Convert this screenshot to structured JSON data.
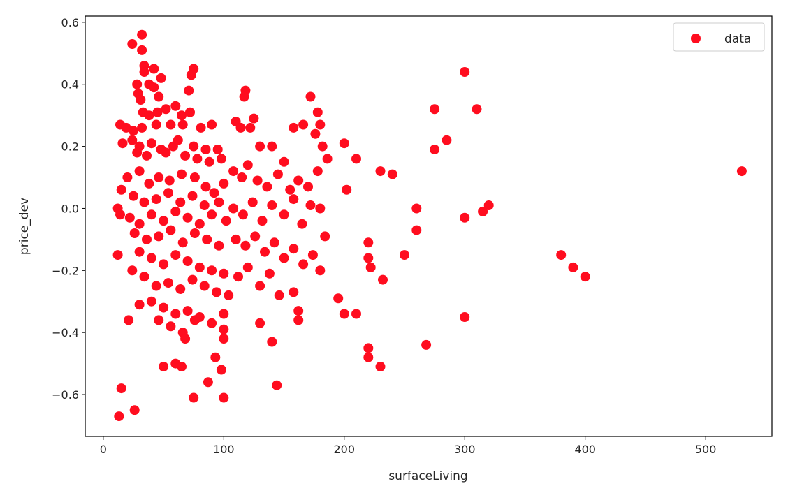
{
  "chart_data": {
    "type": "scatter",
    "title": "",
    "xlabel": "surfaceLiving",
    "ylabel": "price_dev",
    "xlim": [
      -15,
      555
    ],
    "ylim": [
      -0.735,
      0.62
    ],
    "xticks": [
      0,
      100,
      200,
      300,
      400,
      500
    ],
    "xtick_labels": [
      "0",
      "100",
      "200",
      "300",
      "400",
      "500"
    ],
    "yticks": [
      -0.6,
      -0.4,
      -0.2,
      0.0,
      0.2,
      0.4,
      0.6
    ],
    "ytick_labels": [
      "−0.6",
      "−0.4",
      "−0.2",
      "0.0",
      "0.2",
      "0.4",
      "0.6"
    ],
    "grid": false,
    "legend_position": "top-right",
    "series": [
      {
        "name": "data",
        "color": "#ff0d1f",
        "points": [
          [
            32,
            0.56
          ],
          [
            24,
            0.53
          ],
          [
            32,
            0.51
          ],
          [
            42,
            0.45
          ],
          [
            34,
            0.46
          ],
          [
            34,
            0.44
          ],
          [
            48,
            0.42
          ],
          [
            28,
            0.4
          ],
          [
            38,
            0.4
          ],
          [
            42,
            0.39
          ],
          [
            29,
            0.37
          ],
          [
            46,
            0.36
          ],
          [
            31,
            0.35
          ],
          [
            75,
            0.45
          ],
          [
            73,
            0.43
          ],
          [
            71,
            0.38
          ],
          [
            60,
            0.33
          ],
          [
            52,
            0.32
          ],
          [
            65,
            0.3
          ],
          [
            72,
            0.31
          ],
          [
            45,
            0.31
          ],
          [
            33,
            0.31
          ],
          [
            38,
            0.3
          ],
          [
            14,
            0.27
          ],
          [
            19,
            0.26
          ],
          [
            25,
            0.25
          ],
          [
            32,
            0.26
          ],
          [
            44,
            0.27
          ],
          [
            56,
            0.27
          ],
          [
            66,
            0.27
          ],
          [
            81,
            0.26
          ],
          [
            90,
            0.27
          ],
          [
            24,
            0.22
          ],
          [
            30,
            0.2
          ],
          [
            40,
            0.21
          ],
          [
            48,
            0.19
          ],
          [
            58,
            0.2
          ],
          [
            62,
            0.22
          ],
          [
            75,
            0.2
          ],
          [
            85,
            0.19
          ],
          [
            95,
            0.19
          ],
          [
            16,
            0.21
          ],
          [
            28,
            0.18
          ],
          [
            36,
            0.17
          ],
          [
            52,
            0.18
          ],
          [
            68,
            0.17
          ],
          [
            78,
            0.16
          ],
          [
            88,
            0.15
          ],
          [
            98,
            0.16
          ],
          [
            20,
            0.1
          ],
          [
            30,
            0.12
          ],
          [
            38,
            0.08
          ],
          [
            46,
            0.1
          ],
          [
            55,
            0.09
          ],
          [
            65,
            0.11
          ],
          [
            76,
            0.1
          ],
          [
            85,
            0.07
          ],
          [
            92,
            0.05
          ],
          [
            100,
            0.08
          ],
          [
            15,
            0.06
          ],
          [
            25,
            0.04
          ],
          [
            34,
            0.02
          ],
          [
            44,
            0.03
          ],
          [
            54,
            0.05
          ],
          [
            64,
            0.02
          ],
          [
            74,
            0.04
          ],
          [
            84,
            0.01
          ],
          [
            96,
            0.02
          ],
          [
            12,
            0.0
          ],
          [
            14,
            -0.02
          ],
          [
            22,
            -0.03
          ],
          [
            30,
            -0.05
          ],
          [
            40,
            -0.02
          ],
          [
            50,
            -0.04
          ],
          [
            60,
            -0.01
          ],
          [
            70,
            -0.03
          ],
          [
            80,
            -0.05
          ],
          [
            90,
            -0.02
          ],
          [
            102,
            -0.04
          ],
          [
            26,
            -0.08
          ],
          [
            36,
            -0.1
          ],
          [
            46,
            -0.09
          ],
          [
            56,
            -0.07
          ],
          [
            66,
            -0.11
          ],
          [
            76,
            -0.08
          ],
          [
            86,
            -0.1
          ],
          [
            96,
            -0.12
          ],
          [
            12,
            -0.15
          ],
          [
            30,
            -0.14
          ],
          [
            40,
            -0.16
          ],
          [
            50,
            -0.18
          ],
          [
            60,
            -0.15
          ],
          [
            70,
            -0.17
          ],
          [
            80,
            -0.19
          ],
          [
            90,
            -0.2
          ],
          [
            100,
            -0.21
          ],
          [
            24,
            -0.2
          ],
          [
            34,
            -0.22
          ],
          [
            44,
            -0.25
          ],
          [
            54,
            -0.24
          ],
          [
            64,
            -0.26
          ],
          [
            74,
            -0.23
          ],
          [
            84,
            -0.25
          ],
          [
            94,
            -0.27
          ],
          [
            104,
            -0.28
          ],
          [
            30,
            -0.31
          ],
          [
            40,
            -0.3
          ],
          [
            50,
            -0.32
          ],
          [
            60,
            -0.34
          ],
          [
            70,
            -0.33
          ],
          [
            80,
            -0.35
          ],
          [
            90,
            -0.37
          ],
          [
            100,
            -0.34
          ],
          [
            21,
            -0.36
          ],
          [
            46,
            -0.36
          ],
          [
            56,
            -0.38
          ],
          [
            66,
            -0.4
          ],
          [
            68,
            -0.42
          ],
          [
            76,
            -0.36
          ],
          [
            100,
            -0.39
          ],
          [
            100,
            -0.42
          ],
          [
            50,
            -0.51
          ],
          [
            60,
            -0.5
          ],
          [
            65,
            -0.51
          ],
          [
            87,
            -0.56
          ],
          [
            93,
            -0.48
          ],
          [
            98,
            -0.52
          ],
          [
            144,
            -0.57
          ],
          [
            15,
            -0.58
          ],
          [
            26,
            -0.65
          ],
          [
            13,
            -0.67
          ],
          [
            75,
            -0.61
          ],
          [
            100,
            -0.61
          ],
          [
            110,
            0.28
          ],
          [
            114,
            0.26
          ],
          [
            118,
            0.38
          ],
          [
            117,
            0.36
          ],
          [
            122,
            0.26
          ],
          [
            125,
            0.29
          ],
          [
            130,
            0.2
          ],
          [
            140,
            0.2
          ],
          [
            150,
            0.15
          ],
          [
            158,
            0.26
          ],
          [
            166,
            0.27
          ],
          [
            172,
            0.36
          ],
          [
            178,
            0.31
          ],
          [
            180,
            0.27
          ],
          [
            176,
            0.24
          ],
          [
            182,
            0.2
          ],
          [
            108,
            0.12
          ],
          [
            115,
            0.1
          ],
          [
            120,
            0.14
          ],
          [
            128,
            0.09
          ],
          [
            136,
            0.07
          ],
          [
            145,
            0.11
          ],
          [
            155,
            0.06
          ],
          [
            162,
            0.09
          ],
          [
            170,
            0.07
          ],
          [
            178,
            0.12
          ],
          [
            186,
            0.16
          ],
          [
            108,
            0.0
          ],
          [
            116,
            -0.02
          ],
          [
            124,
            0.02
          ],
          [
            132,
            -0.04
          ],
          [
            140,
            0.01
          ],
          [
            150,
            -0.02
          ],
          [
            158,
            0.03
          ],
          [
            165,
            -0.05
          ],
          [
            172,
            0.01
          ],
          [
            180,
            0.0
          ],
          [
            110,
            -0.1
          ],
          [
            118,
            -0.12
          ],
          [
            126,
            -0.09
          ],
          [
            134,
            -0.14
          ],
          [
            142,
            -0.11
          ],
          [
            150,
            -0.16
          ],
          [
            158,
            -0.13
          ],
          [
            166,
            -0.18
          ],
          [
            174,
            -0.15
          ],
          [
            180,
            -0.2
          ],
          [
            184,
            -0.09
          ],
          [
            112,
            -0.22
          ],
          [
            120,
            -0.19
          ],
          [
            130,
            -0.25
          ],
          [
            138,
            -0.21
          ],
          [
            146,
            -0.28
          ],
          [
            158,
            -0.27
          ],
          [
            162,
            -0.33
          ],
          [
            162,
            -0.36
          ],
          [
            130,
            -0.37
          ],
          [
            140,
            -0.43
          ],
          [
            195,
            -0.29
          ],
          [
            200,
            -0.34
          ],
          [
            210,
            -0.34
          ],
          [
            200,
            0.21
          ],
          [
            202,
            0.06
          ],
          [
            210,
            0.16
          ],
          [
            220,
            -0.11
          ],
          [
            220,
            -0.16
          ],
          [
            222,
            -0.19
          ],
          [
            220,
            -0.45
          ],
          [
            220,
            -0.48
          ],
          [
            230,
            -0.51
          ],
          [
            232,
            -0.23
          ],
          [
            250,
            -0.15
          ],
          [
            230,
            0.12
          ],
          [
            240,
            0.11
          ],
          [
            260,
            0.0
          ],
          [
            260,
            -0.07
          ],
          [
            268,
            -0.44
          ],
          [
            275,
            0.32
          ],
          [
            275,
            0.19
          ],
          [
            285,
            0.22
          ],
          [
            300,
            0.44
          ],
          [
            310,
            0.32
          ],
          [
            300,
            -0.03
          ],
          [
            300,
            -0.35
          ],
          [
            315,
            -0.01
          ],
          [
            320,
            0.01
          ],
          [
            380,
            -0.15
          ],
          [
            390,
            -0.19
          ],
          [
            400,
            -0.22
          ],
          [
            530,
            0.12
          ]
        ]
      }
    ]
  }
}
